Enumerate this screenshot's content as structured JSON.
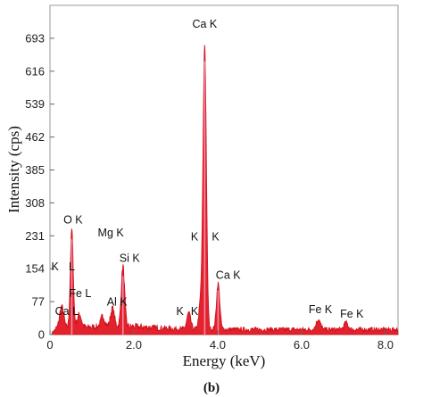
{
  "chart_data": {
    "type": "line",
    "xlabel": "Energy (keV)",
    "ylabel": "Intensity (cps)",
    "xlim": [
      0,
      8.3
    ],
    "ylim": [
      0,
      770
    ],
    "x_ticks": [
      0,
      2.0,
      4.0,
      6.0,
      8.0
    ],
    "x_tick_labels": [
      "0",
      "2.0",
      "4.0",
      "6.0",
      "8.0"
    ],
    "y_ticks": [
      0,
      77,
      154,
      231,
      308,
      385,
      462,
      539,
      616,
      693
    ],
    "y_tick_labels": [
      "0",
      "77",
      "154",
      "231",
      "308",
      "385",
      "462",
      "539",
      "616",
      "693"
    ],
    "grid": false,
    "series_color": "#e0101c",
    "background_level": 12,
    "peaks": [
      {
        "x": 0.28,
        "height": 52,
        "width": 0.05
      },
      {
        "x": 0.52,
        "height": 232,
        "width": 0.035
      },
      {
        "x": 0.7,
        "height": 32,
        "width": 0.05
      },
      {
        "x": 1.26,
        "height": 25,
        "width": 0.045
      },
      {
        "x": 1.49,
        "height": 42,
        "width": 0.045
      },
      {
        "x": 1.74,
        "height": 142,
        "width": 0.04
      },
      {
        "x": 3.31,
        "height": 38,
        "width": 0.045
      },
      {
        "x": 3.59,
        "height": 60,
        "width": 0.04
      },
      {
        "x": 3.69,
        "height": 666,
        "width": 0.04
      },
      {
        "x": 4.01,
        "height": 108,
        "width": 0.04
      },
      {
        "x": 6.4,
        "height": 24,
        "width": 0.05
      },
      {
        "x": 7.06,
        "height": 16,
        "width": 0.05
      }
    ],
    "annotations": [
      {
        "text": "Ca K",
        "x": 3.69,
        "y": 718
      },
      {
        "text": "O  K",
        "x": 0.55,
        "y": 260
      },
      {
        "text": "Mg K",
        "x": 1.45,
        "y": 230
      },
      {
        "text": "K",
        "x": 3.45,
        "y": 220
      },
      {
        "text": "K",
        "x": 3.95,
        "y": 220
      },
      {
        "text": "K",
        "x": 0.12,
        "y": 150
      },
      {
        "text": "L",
        "x": 0.52,
        "y": 150
      },
      {
        "text": "Si K",
        "x": 1.9,
        "y": 170
      },
      {
        "text": "Ca K",
        "x": 4.25,
        "y": 130
      },
      {
        "text": "Fe L",
        "x": 0.72,
        "y": 88
      },
      {
        "text": "Al K",
        "x": 1.6,
        "y": 68
      },
      {
        "text": "Ca L",
        "x": 0.4,
        "y": 46
      },
      {
        "text": "K",
        "x": 3.1,
        "y": 46
      },
      {
        "text": "K",
        "x": 3.45,
        "y": 46
      },
      {
        "text": "Fe K",
        "x": 6.45,
        "y": 50
      },
      {
        "text": "Fe K",
        "x": 7.2,
        "y": 40
      }
    ]
  },
  "caption": "(b)"
}
